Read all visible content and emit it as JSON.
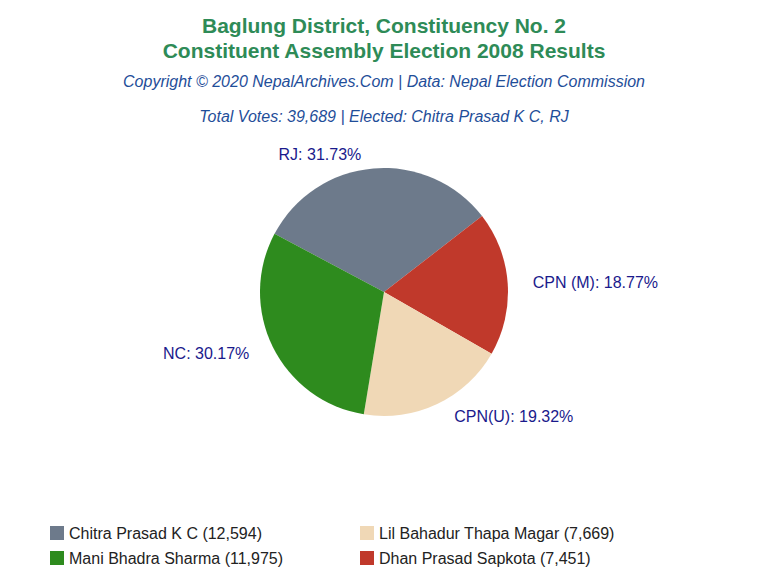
{
  "chart_data": {
    "type": "pie",
    "title": "Baglung District, Constituency No. 2\nConstituent Assembly Election 2008 Results",
    "subtitle": [
      "Copyright © 2020 NepalArchives.Com | Data: Nepal Election Commission",
      "Total Votes: 39,689 | Elected: Chitra Prasad K C, RJ"
    ],
    "categories": [
      "Chitra Prasad K C (12,594)",
      "Dhan Prasad Sapkota (7,451)",
      "Lil Bahadur Thapa Magar (7,669)",
      "Mani Bhadra Sharma (11,975)"
    ],
    "values": [
      31.73,
      18.77,
      19.32,
      30.17
    ],
    "value_labels": [
      "RJ: 31.73%",
      "CPN (M): 18.77%",
      "CPN(U): 19.32%",
      "NC: 30.17%"
    ],
    "colors": [
      "#6d7a8b",
      "#c0392b",
      "#f0d8b6",
      "#2e8b1e"
    ],
    "data_labels": true,
    "legend": "bottom"
  }
}
